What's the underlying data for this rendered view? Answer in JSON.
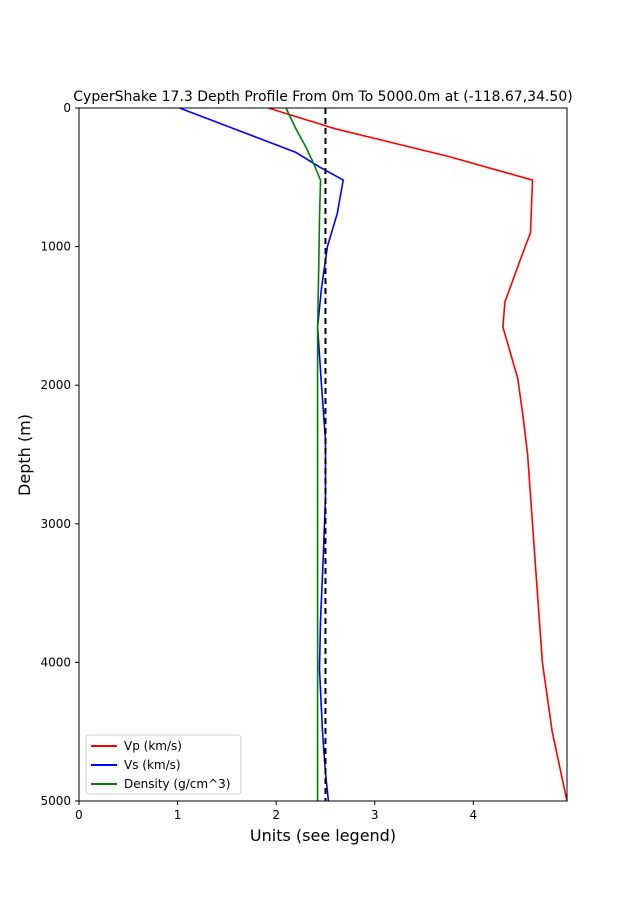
{
  "chart_data": {
    "type": "line",
    "title": "CyperShake 17.3 Depth Profile From 0m To 5000.0m at (-118.67,34.50)",
    "xlabel": "Units (see legend)",
    "ylabel": "Depth (m)",
    "xlim": [
      0,
      4.95
    ],
    "ylim": [
      5000,
      0
    ],
    "y_inverted": true,
    "x_ticks": [
      0,
      1,
      2,
      3,
      4
    ],
    "y_ticks": [
      0,
      1000,
      2000,
      3000,
      4000,
      5000
    ],
    "grid": false,
    "legend_position": "lower-left",
    "reference_line": {
      "x": 2.5,
      "style": "dashed",
      "color": "#000000"
    },
    "series": [
      {
        "name": "Vp (km/s)",
        "color": "#ff0000",
        "points": [
          [
            1.92,
            0
          ],
          [
            2.6,
            150
          ],
          [
            3.75,
            350
          ],
          [
            4.6,
            520
          ],
          [
            4.58,
            900
          ],
          [
            4.5,
            1050
          ],
          [
            4.32,
            1400
          ],
          [
            4.3,
            1580
          ],
          [
            4.45,
            1950
          ],
          [
            4.5,
            2200
          ],
          [
            4.55,
            2500
          ],
          [
            4.6,
            3000
          ],
          [
            4.65,
            3500
          ],
          [
            4.7,
            4000
          ],
          [
            4.8,
            4500
          ],
          [
            4.95,
            5000
          ]
        ]
      },
      {
        "name": "Vs (km/s)",
        "color": "#0000ff",
        "points": [
          [
            1.02,
            0
          ],
          [
            2.2,
            320
          ],
          [
            2.45,
            430
          ],
          [
            2.68,
            520
          ],
          [
            2.62,
            760
          ],
          [
            2.52,
            1000
          ],
          [
            2.46,
            1300
          ],
          [
            2.42,
            1580
          ],
          [
            2.46,
            2000
          ],
          [
            2.5,
            2400
          ],
          [
            2.5,
            2800
          ],
          [
            2.48,
            3200
          ],
          [
            2.45,
            3700
          ],
          [
            2.44,
            4050
          ],
          [
            2.47,
            4500
          ],
          [
            2.5,
            4800
          ],
          [
            2.53,
            5000
          ]
        ]
      },
      {
        "name": "Density (g/cm^3)",
        "color": "#008000",
        "points": [
          [
            2.1,
            0
          ],
          [
            2.2,
            150
          ],
          [
            2.3,
            280
          ],
          [
            2.38,
            400
          ],
          [
            2.45,
            520
          ],
          [
            2.44,
            800
          ],
          [
            2.43,
            1200
          ],
          [
            2.42,
            1600
          ],
          [
            2.42,
            2000
          ],
          [
            2.42,
            3000
          ],
          [
            2.42,
            4000
          ],
          [
            2.42,
            4500
          ],
          [
            2.42,
            5000
          ]
        ]
      }
    ]
  }
}
